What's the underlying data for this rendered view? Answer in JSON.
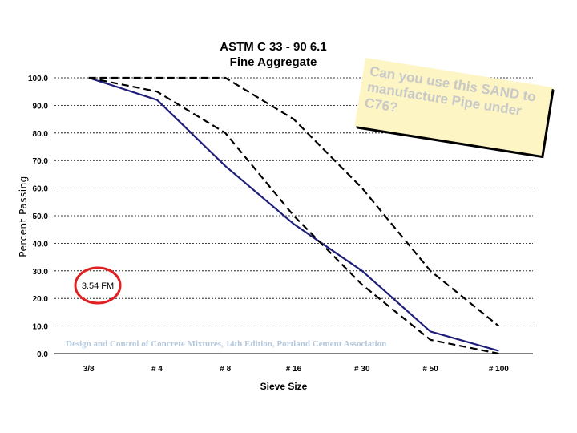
{
  "chart_data": {
    "type": "line",
    "title": "ASTM C 33 - 90 6.1",
    "subtitle": "Fine Aggregate",
    "xlabel": "Sieve Size",
    "ylabel": "Percent Passing",
    "categories": [
      "3/8",
      "# 4",
      "# 8",
      "# 16",
      "# 30",
      "# 50",
      "# 100"
    ],
    "ylim": [
      0,
      100
    ],
    "yticks": [
      "0.0",
      "10.0",
      "20.0",
      "30.0",
      "40.0",
      "50.0",
      "60.0",
      "70.0",
      "80.0",
      "90.0",
      "100.0"
    ],
    "grid": "horizontal dashed",
    "series": [
      {
        "values": [
          100,
          92,
          68,
          47,
          30,
          8,
          1
        ],
        "color": "#1f1f7a",
        "style": "solid"
      },
      {
        "values": [
          100,
          100,
          100,
          85,
          60,
          30,
          10
        ],
        "color": "#000000",
        "style": "dashed"
      },
      {
        "values": [
          100,
          95,
          80,
          50,
          25,
          5,
          0
        ],
        "color": "#000000",
        "style": "dashed"
      }
    ],
    "annotations": {
      "fm_label": "3.54 FM",
      "credit": "Design and Control of Concrete Mixtures, 14th Edition, Portland Cement Association"
    }
  },
  "note": {
    "line1": "Can you use this SAND to",
    "line2": "manufacture Pipe under C76?"
  }
}
